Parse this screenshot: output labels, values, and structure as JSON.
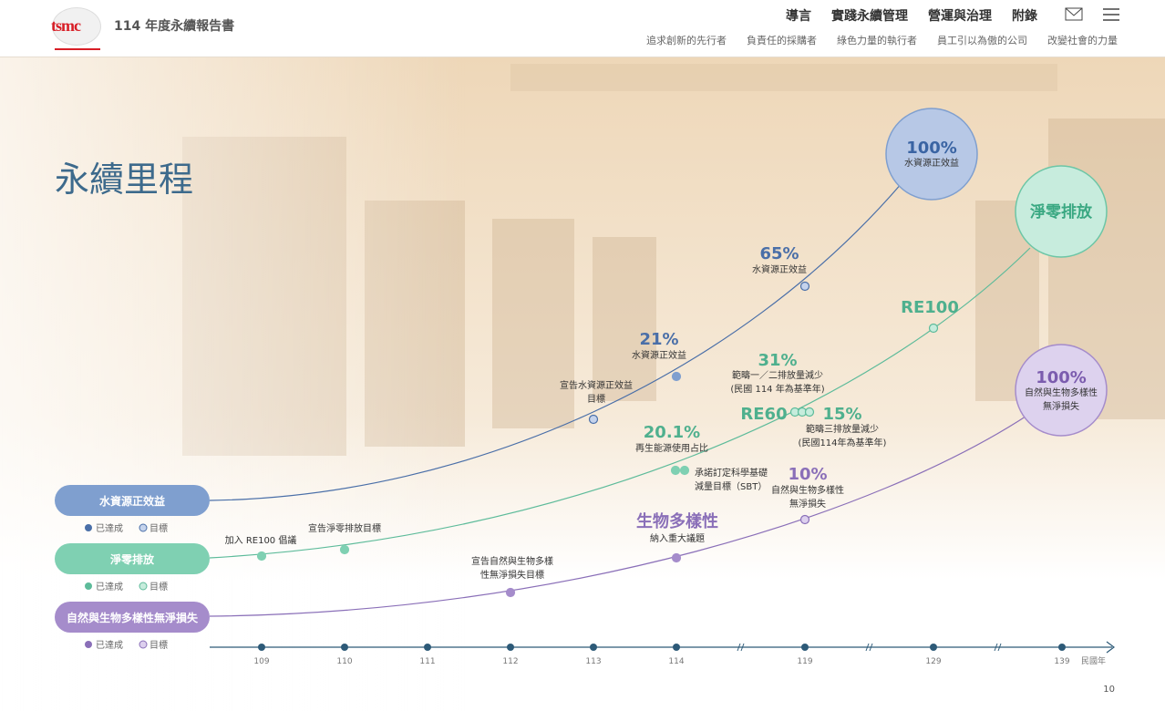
{
  "header": {
    "logo": "tsmc",
    "report_title": "114 年度永續報告書",
    "nav": [
      "導言",
      "實踐永續管理",
      "營運與治理",
      "附錄"
    ],
    "subnav": [
      "追求創新的先行者",
      "負責任的採購者",
      "綠色力量的執行者",
      "員工引以為傲的公司",
      "改變社會的力量"
    ]
  },
  "page_title": "永續里程",
  "legend": {
    "achieved": "已達成",
    "target": "目標"
  },
  "tracks": [
    {
      "label": "水資源正效益"
    },
    {
      "label": "淨零排放"
    },
    {
      "label": "自然與生物多樣性無淨損失"
    }
  ],
  "goals": [
    {
      "value": "100%",
      "label": [
        "水資源正效益"
      ]
    },
    {
      "value": "淨零排放"
    },
    {
      "value": "100%",
      "label": [
        "自然與生物多樣性",
        "無淨損失"
      ]
    }
  ],
  "milestones": {
    "water": [
      {
        "text": [
          "宣告水資源正效益",
          "目標"
        ]
      },
      {
        "value": "21%",
        "text": [
          "水資源正效益"
        ]
      },
      {
        "value": "65%",
        "text": [
          "水資源正效益"
        ]
      }
    ],
    "net_zero": [
      {
        "text": [
          "加入 RE100 倡議"
        ]
      },
      {
        "text": [
          "宣告淨零排放目標"
        ]
      },
      {
        "value": "20.1%",
        "text": [
          "再生能源使用占比"
        ]
      },
      {
        "text": [
          "承諾訂定科學基礎",
          "減量目標（SBT）"
        ]
      },
      {
        "value": "31%",
        "text": [
          "範疇一／二排放量減少",
          "(民國 114 年為基準年)"
        ]
      },
      {
        "value": "RE60"
      },
      {
        "value": "15%",
        "text": [
          "範疇三排放量減少",
          "(民國114年為基準年)"
        ]
      },
      {
        "value": "RE100"
      }
    ],
    "biodiversity": [
      {
        "text": [
          "宣告自然與生物多樣",
          "性無淨損失目標"
        ]
      },
      {
        "value": "生物多樣性",
        "text": [
          "納入重大議題"
        ]
      },
      {
        "value": "10%",
        "text": [
          "自然與生物多樣性",
          "無淨損失"
        ]
      }
    ]
  },
  "axis": {
    "years": [
      "109",
      "110",
      "111",
      "112",
      "113",
      "114",
      "119",
      "129",
      "139"
    ],
    "unit": "民國年"
  },
  "page_number": "10"
}
